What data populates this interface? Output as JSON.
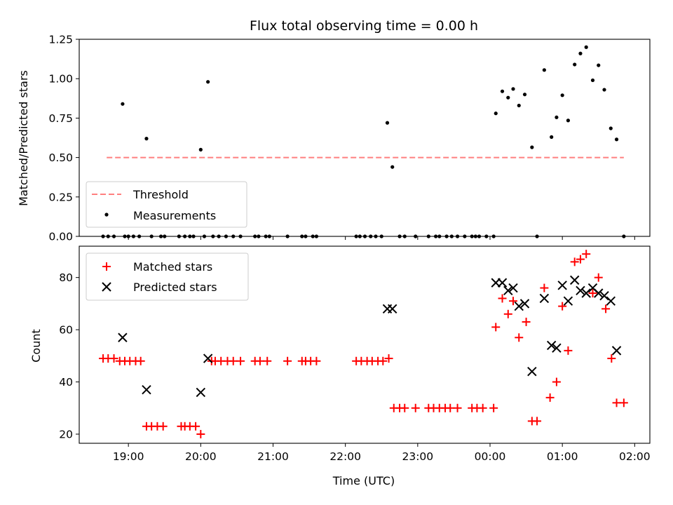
{
  "chart_data": [
    {
      "type": "scatter",
      "title": "Flux total observing time = 0.00 h",
      "xlabel": "",
      "ylabel": "Matched/Predicted stars",
      "xlim": [
        18.32,
        26.21
      ],
      "ylim": [
        0,
        1.25
      ],
      "yticks": [
        "0.00",
        "0.25",
        "0.50",
        "0.75",
        "1.00",
        "1.25"
      ],
      "grid": false,
      "legend_position": "lower-left",
      "threshold": {
        "name": "Threshold",
        "value": 0.5,
        "x_range": [
          18.7,
          25.85
        ],
        "color": "#ff7f7f",
        "style": "dashed"
      },
      "series": [
        {
          "name": "Measurements",
          "color": "#000000",
          "marker": "dot",
          "points": [
            [
              18.65,
              0
            ],
            [
              18.72,
              0
            ],
            [
              18.8,
              0
            ],
            [
              18.92,
              0.84
            ],
            [
              18.95,
              0
            ],
            [
              19.0,
              0
            ],
            [
              19.07,
              0
            ],
            [
              19.15,
              0
            ],
            [
              19.25,
              0.62
            ],
            [
              19.32,
              0
            ],
            [
              19.45,
              0
            ],
            [
              19.5,
              0
            ],
            [
              19.7,
              0
            ],
            [
              19.78,
              0
            ],
            [
              19.85,
              0
            ],
            [
              19.9,
              0
            ],
            [
              20.0,
              0.55
            ],
            [
              20.05,
              0
            ],
            [
              20.1,
              0.98
            ],
            [
              20.17,
              0
            ],
            [
              20.25,
              0
            ],
            [
              20.35,
              0
            ],
            [
              20.45,
              0
            ],
            [
              20.55,
              0
            ],
            [
              20.75,
              0
            ],
            [
              20.8,
              0
            ],
            [
              20.9,
              0
            ],
            [
              20.95,
              0
            ],
            [
              21.2,
              0
            ],
            [
              21.4,
              0
            ],
            [
              21.45,
              0
            ],
            [
              21.55,
              0
            ],
            [
              21.6,
              0
            ],
            [
              22.15,
              0
            ],
            [
              22.2,
              0
            ],
            [
              22.27,
              0
            ],
            [
              22.35,
              0
            ],
            [
              22.42,
              0
            ],
            [
              22.5,
              0
            ],
            [
              22.58,
              0.72
            ],
            [
              22.65,
              0.44
            ],
            [
              22.75,
              0
            ],
            [
              22.82,
              0
            ],
            [
              22.97,
              0
            ],
            [
              23.15,
              0
            ],
            [
              23.25,
              0
            ],
            [
              23.3,
              0
            ],
            [
              23.4,
              0
            ],
            [
              23.47,
              0
            ],
            [
              23.55,
              0
            ],
            [
              23.65,
              0
            ],
            [
              23.75,
              0
            ],
            [
              23.8,
              0
            ],
            [
              23.85,
              0
            ],
            [
              23.95,
              0
            ],
            [
              24.05,
              0
            ],
            [
              24.08,
              0.78
            ],
            [
              24.17,
              0.92
            ],
            [
              24.25,
              0.88
            ],
            [
              24.32,
              0.935
            ],
            [
              24.4,
              0.83
            ],
            [
              24.48,
              0.9
            ],
            [
              24.58,
              0.565
            ],
            [
              24.65,
              0
            ],
            [
              24.75,
              1.055
            ],
            [
              24.85,
              0.63
            ],
            [
              24.92,
              0.755
            ],
            [
              25.0,
              0.895
            ],
            [
              25.08,
              0.735
            ],
            [
              25.17,
              1.09
            ],
            [
              25.25,
              1.16
            ],
            [
              25.33,
              1.2
            ],
            [
              25.42,
              0.99
            ],
            [
              25.5,
              1.085
            ],
            [
              25.58,
              0.93
            ],
            [
              25.67,
              0.685
            ],
            [
              25.75,
              0.615
            ],
            [
              25.85,
              0
            ]
          ]
        }
      ]
    },
    {
      "type": "scatter",
      "title": "",
      "xlabel": "Time (UTC)",
      "ylabel": "Count",
      "xlim": [
        18.32,
        26.21
      ],
      "ylim": [
        16.5,
        92
      ],
      "xticks": [
        {
          "value": 19,
          "label": "19:00"
        },
        {
          "value": 20,
          "label": "20:00"
        },
        {
          "value": 21,
          "label": "21:00"
        },
        {
          "value": 22,
          "label": "22:00"
        },
        {
          "value": 23,
          "label": "23:00"
        },
        {
          "value": 24,
          "label": "00:00"
        },
        {
          "value": 25,
          "label": "01:00"
        },
        {
          "value": 26,
          "label": "02:00"
        }
      ],
      "yticks": [
        "20",
        "40",
        "60",
        "80"
      ],
      "grid": false,
      "legend_position": "top-left",
      "series": [
        {
          "name": "Matched stars",
          "color": "#ff0000",
          "marker": "plus",
          "points": [
            [
              18.65,
              49
            ],
            [
              18.72,
              49
            ],
            [
              18.8,
              49
            ],
            [
              18.88,
              48
            ],
            [
              18.95,
              48
            ],
            [
              19.02,
              48
            ],
            [
              19.1,
              48
            ],
            [
              19.17,
              48
            ],
            [
              19.25,
              23
            ],
            [
              19.32,
              23
            ],
            [
              19.4,
              23
            ],
            [
              19.48,
              23
            ],
            [
              19.73,
              23
            ],
            [
              19.78,
              23
            ],
            [
              19.85,
              23
            ],
            [
              19.93,
              23
            ],
            [
              20.0,
              20
            ],
            [
              20.15,
              48
            ],
            [
              20.2,
              48
            ],
            [
              20.28,
              48
            ],
            [
              20.37,
              48
            ],
            [
              20.45,
              48
            ],
            [
              20.55,
              48
            ],
            [
              20.75,
              48
            ],
            [
              20.82,
              48
            ],
            [
              20.92,
              48
            ],
            [
              21.2,
              48
            ],
            [
              21.4,
              48
            ],
            [
              21.45,
              48
            ],
            [
              21.52,
              48
            ],
            [
              21.6,
              48
            ],
            [
              22.15,
              48
            ],
            [
              22.22,
              48
            ],
            [
              22.3,
              48
            ],
            [
              22.37,
              48
            ],
            [
              22.45,
              48
            ],
            [
              22.52,
              48
            ],
            [
              22.6,
              49
            ],
            [
              22.67,
              30
            ],
            [
              22.75,
              30
            ],
            [
              22.82,
              30
            ],
            [
              22.97,
              30
            ],
            [
              23.15,
              30
            ],
            [
              23.22,
              30
            ],
            [
              23.3,
              30
            ],
            [
              23.38,
              30
            ],
            [
              23.45,
              30
            ],
            [
              23.55,
              30
            ],
            [
              23.75,
              30
            ],
            [
              23.82,
              30
            ],
            [
              23.9,
              30
            ],
            [
              24.05,
              30
            ],
            [
              24.08,
              61
            ],
            [
              24.17,
              72
            ],
            [
              24.25,
              66
            ],
            [
              24.32,
              71
            ],
            [
              24.4,
              57
            ],
            [
              24.5,
              63
            ],
            [
              24.58,
              25
            ],
            [
              24.65,
              25
            ],
            [
              24.75,
              76
            ],
            [
              24.83,
              34
            ],
            [
              24.92,
              40
            ],
            [
              25.0,
              69
            ],
            [
              25.08,
              52
            ],
            [
              25.17,
              86
            ],
            [
              25.25,
              87
            ],
            [
              25.33,
              89
            ],
            [
              25.42,
              74
            ],
            [
              25.5,
              80
            ],
            [
              25.6,
              68
            ],
            [
              25.68,
              49
            ],
            [
              25.75,
              32
            ],
            [
              25.85,
              32
            ]
          ]
        },
        {
          "name": "Predicted stars",
          "color": "#000000",
          "marker": "x",
          "points": [
            [
              18.92,
              57
            ],
            [
              19.25,
              37
            ],
            [
              20.0,
              36
            ],
            [
              20.1,
              49
            ],
            [
              22.58,
              68
            ],
            [
              22.65,
              68
            ],
            [
              24.08,
              78
            ],
            [
              24.17,
              78
            ],
            [
              24.25,
              75
            ],
            [
              24.32,
              76
            ],
            [
              24.4,
              69
            ],
            [
              24.48,
              70
            ],
            [
              24.58,
              44
            ],
            [
              24.75,
              72
            ],
            [
              24.85,
              54
            ],
            [
              24.92,
              53
            ],
            [
              25.0,
              77
            ],
            [
              25.08,
              71
            ],
            [
              25.17,
              79
            ],
            [
              25.25,
              75
            ],
            [
              25.33,
              74
            ],
            [
              25.42,
              76
            ],
            [
              25.5,
              74
            ],
            [
              25.58,
              73
            ],
            [
              25.67,
              71
            ],
            [
              25.75,
              52
            ]
          ]
        }
      ]
    }
  ]
}
